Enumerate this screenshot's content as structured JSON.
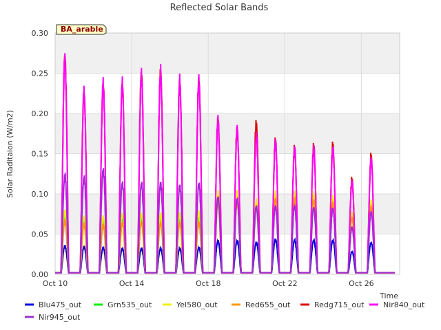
{
  "chart_data": {
    "type": "line",
    "title": "Reflected Solar Bands",
    "xlabel": "Time",
    "ylabel": "Solar Raditaion (W/m2)",
    "site_label": "BA_arable",
    "xlim": [
      "2023-10-10",
      "2023-10-28"
    ],
    "ylim": [
      0,
      0.3
    ],
    "yticks": [
      "0.00",
      "0.05",
      "0.10",
      "0.15",
      "0.20",
      "0.25",
      "0.30"
    ],
    "xticks": [
      {
        "date": "2023-10-10",
        "label": "Oct 10"
      },
      {
        "date": "2023-10-14",
        "label": "Oct 14"
      },
      {
        "date": "2023-10-18",
        "label": "Oct 18"
      },
      {
        "date": "2023-10-22",
        "label": "Oct 22"
      },
      {
        "date": "2023-10-26",
        "label": "Oct 26"
      }
    ],
    "grid": true,
    "legend_position": "bottom",
    "days": [
      "2023-10-10",
      "2023-10-11",
      "2023-10-12",
      "2023-10-13",
      "2023-10-14",
      "2023-10-15",
      "2023-10-16",
      "2023-10-17",
      "2023-10-18",
      "2023-10-19",
      "2023-10-20",
      "2023-10-21",
      "2023-10-22",
      "2023-10-23",
      "2023-10-24",
      "2023-10-25",
      "2023-10-26",
      "2023-10-27"
    ],
    "series": [
      {
        "name": "Blu475_out",
        "color": "#0000dd",
        "daily_peak": [
          0.037,
          0.036,
          0.035,
          0.034,
          0.034,
          0.034,
          0.034,
          0.035,
          0.044,
          0.044,
          0.042,
          0.046,
          0.045,
          0.045,
          0.045,
          0.03,
          0.042,
          0.0
        ]
      },
      {
        "name": "Grn535_out",
        "color": "#00ee00",
        "daily_peak": [
          0.075,
          0.072,
          0.071,
          0.072,
          0.072,
          0.072,
          0.072,
          0.074,
          0.098,
          0.098,
          0.09,
          0.1,
          0.1,
          0.1,
          0.095,
          0.075,
          0.088,
          0.0
        ]
      },
      {
        "name": "Yel580_out",
        "color": "#eeee00",
        "daily_peak": [
          0.083,
          0.075,
          0.075,
          0.078,
          0.078,
          0.078,
          0.078,
          0.08,
          0.105,
          0.105,
          0.095,
          0.105,
          0.105,
          0.105,
          0.1,
          0.08,
          0.095,
          0.0
        ]
      },
      {
        "name": "Red655_out",
        "color": "#ff9900",
        "daily_peak": [
          0.07,
          0.066,
          0.065,
          0.067,
          0.068,
          0.068,
          0.068,
          0.068,
          0.095,
          0.095,
          0.09,
          0.1,
          0.1,
          0.098,
          0.095,
          0.075,
          0.09,
          0.0
        ]
      },
      {
        "name": "Redg715_out",
        "color": "#dd0000",
        "daily_peak": [
          0.288,
          0.24,
          0.25,
          0.25,
          0.265,
          0.268,
          0.252,
          0.255,
          0.203,
          0.19,
          0.198,
          0.175,
          0.165,
          0.167,
          0.168,
          0.123,
          0.153,
          0.0
        ]
      },
      {
        "name": "Nir840_out",
        "color": "#ff00ff",
        "daily_peak": [
          0.28,
          0.238,
          0.248,
          0.248,
          0.258,
          0.262,
          0.25,
          0.25,
          0.2,
          0.188,
          0.18,
          0.172,
          0.163,
          0.165,
          0.163,
          0.121,
          0.151,
          0.0
        ]
      },
      {
        "name": "Nir945_out",
        "color": "#9933cc",
        "daily_peak": [
          0.13,
          0.127,
          0.137,
          0.12,
          0.12,
          0.12,
          0.117,
          0.12,
          0.102,
          0.1,
          0.09,
          0.09,
          0.09,
          0.088,
          0.087,
          0.062,
          0.082,
          0.0
        ]
      }
    ]
  }
}
